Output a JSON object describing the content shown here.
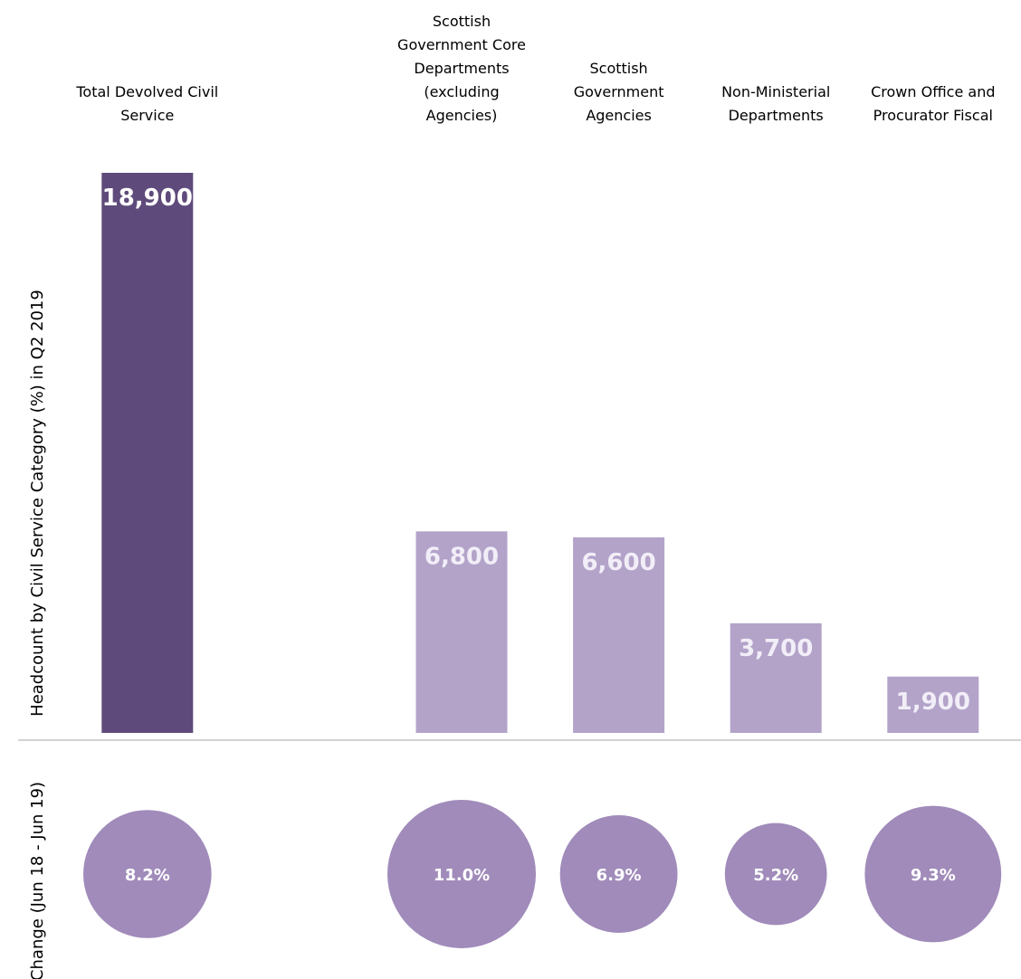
{
  "chart_data": [
    {
      "type": "bar",
      "ylabel": "Headcount by Civil Service Category (%) in Q2 2019",
      "categories": [
        "Total Devolved Civil Service",
        "",
        "Scottish Government Core Departments (excluding Agencies)",
        "Scottish Government Agencies",
        "Non-Ministerial Departments",
        "Crown Office and Procurator Fiscal"
      ],
      "values": [
        18900,
        null,
        6800,
        6600,
        3700,
        1900
      ],
      "value_labels": [
        "18,900",
        "",
        "6,800",
        "6,600",
        "3,700",
        "1,900"
      ],
      "ylim": [
        0,
        18900
      ],
      "colors": [
        "#5f4b7b",
        null,
        "#b3a3c9",
        "#b3a3c9",
        "#b3a3c9",
        "#b3a3c9"
      ],
      "value_label_colors": [
        "#ffffff",
        null,
        "#f2eef8",
        "#f2eef8",
        "#f2eef8",
        "#f2eef8"
      ]
    },
    {
      "type": "scatter",
      "ylabel": "Change (Jun 18 - Jun 19)",
      "categories": [
        "Total Devolved Civil Service",
        "",
        "Scottish Government Core Departments (excluding Agencies)",
        "Scottish Government Agencies",
        "Non-Ministerial Departments",
        "Crown Office and Procurator Fiscal"
      ],
      "values": [
        8.2,
        null,
        11.0,
        6.9,
        5.2,
        9.3
      ],
      "value_labels": [
        "8.2%",
        "",
        "11.0%",
        "6.9%",
        "5.2%",
        "9.3%"
      ],
      "color": "#a08bba"
    }
  ],
  "category_label_lines": [
    [
      "Total Devolved Civil",
      "Service"
    ],
    [],
    [
      "Scottish",
      "Government Core",
      "Departments",
      "(excluding",
      "Agencies)"
    ],
    [
      "Scottish",
      "Government",
      "Agencies"
    ],
    [
      "Non-Ministerial",
      "Departments"
    ],
    [
      "Crown Office and",
      "Procurator Fiscal"
    ]
  ],
  "divider_color": "#a6a6a6"
}
